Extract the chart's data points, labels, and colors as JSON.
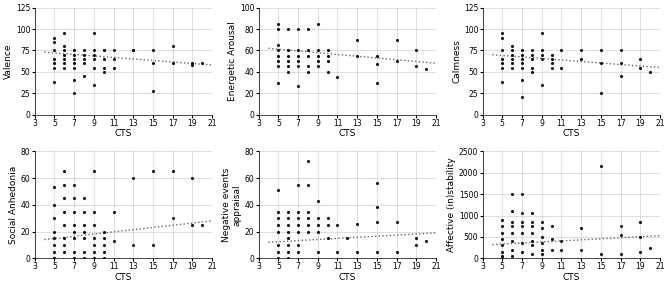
{
  "plots": [
    {
      "ylabel": "Valence",
      "ylim": [
        0,
        125
      ],
      "yticks": [
        0,
        25,
        50,
        75,
        100,
        125
      ],
      "x": [
        5,
        5,
        5,
        5,
        5,
        5,
        5,
        6,
        6,
        6,
        6,
        6,
        6,
        6,
        7,
        7,
        7,
        7,
        7,
        7,
        7,
        8,
        8,
        8,
        8,
        8,
        9,
        9,
        9,
        9,
        9,
        9,
        10,
        10,
        10,
        10,
        10,
        11,
        11,
        11,
        13,
        13,
        15,
        15,
        15,
        17,
        17,
        19,
        19,
        20
      ],
      "y": [
        75,
        65,
        60,
        55,
        85,
        90,
        38,
        70,
        75,
        95,
        80,
        65,
        60,
        55,
        70,
        75,
        65,
        60,
        55,
        25,
        40,
        70,
        75,
        65,
        60,
        45,
        70,
        75,
        65,
        95,
        35,
        55,
        75,
        65,
        55,
        75,
        50,
        55,
        65,
        75,
        75,
        75,
        75,
        27,
        60,
        60,
        80,
        60,
        58,
        60
      ],
      "trend_x": [
        4,
        21
      ],
      "trend_y": [
        73,
        58
      ]
    },
    {
      "ylabel": "Energetic Arousal",
      "ylim": [
        0,
        100
      ],
      "yticks": [
        0,
        20,
        40,
        60,
        80,
        100
      ],
      "x": [
        5,
        5,
        5,
        5,
        5,
        5,
        5,
        5,
        6,
        6,
        6,
        6,
        6,
        6,
        7,
        7,
        7,
        7,
        7,
        7,
        8,
        8,
        8,
        8,
        8,
        9,
        9,
        9,
        9,
        9,
        10,
        10,
        10,
        10,
        11,
        13,
        13,
        15,
        15,
        15,
        17,
        17,
        19,
        19,
        20
      ],
      "y": [
        60,
        55,
        50,
        45,
        80,
        85,
        30,
        65,
        60,
        55,
        50,
        80,
        45,
        40,
        60,
        55,
        50,
        80,
        45,
        27,
        60,
        55,
        80,
        45,
        40,
        60,
        55,
        50,
        45,
        85,
        55,
        60,
        50,
        40,
        35,
        55,
        70,
        55,
        47,
        30,
        50,
        70,
        60,
        45,
        43
      ],
      "trend_x": [
        4,
        21
      ],
      "trend_y": [
        62,
        48
      ]
    },
    {
      "ylabel": "Calmness",
      "ylim": [
        0,
        125
      ],
      "yticks": [
        0,
        25,
        50,
        75,
        100,
        125
      ],
      "x": [
        5,
        5,
        5,
        5,
        5,
        5,
        5,
        6,
        6,
        6,
        6,
        6,
        6,
        7,
        7,
        7,
        7,
        7,
        7,
        7,
        8,
        8,
        8,
        8,
        8,
        9,
        9,
        9,
        9,
        9,
        10,
        10,
        10,
        10,
        11,
        11,
        13,
        13,
        15,
        15,
        15,
        17,
        17,
        17,
        19,
        19,
        20
      ],
      "y": [
        75,
        65,
        60,
        55,
        90,
        95,
        38,
        70,
        75,
        65,
        60,
        80,
        55,
        70,
        75,
        65,
        60,
        55,
        20,
        40,
        70,
        75,
        65,
        55,
        50,
        70,
        75,
        65,
        95,
        35,
        65,
        70,
        55,
        60,
        75,
        55,
        75,
        65,
        25,
        60,
        75,
        45,
        60,
        75,
        55,
        65,
        50
      ],
      "trend_x": [
        4,
        21
      ],
      "trend_y": [
        70,
        55
      ]
    },
    {
      "ylabel": "Social Anhedonia",
      "ylim": [
        0,
        80
      ],
      "yticks": [
        0,
        20,
        40,
        60,
        80
      ],
      "x": [
        5,
        5,
        5,
        5,
        5,
        5,
        5,
        5,
        5,
        6,
        6,
        6,
        6,
        6,
        6,
        6,
        6,
        7,
        7,
        7,
        7,
        7,
        7,
        7,
        7,
        8,
        8,
        8,
        8,
        8,
        8,
        8,
        9,
        9,
        9,
        9,
        9,
        9,
        9,
        10,
        10,
        10,
        10,
        10,
        11,
        11,
        13,
        13,
        15,
        15,
        17,
        17,
        19,
        19,
        20
      ],
      "y": [
        53,
        40,
        30,
        20,
        15,
        10,
        5,
        0,
        0,
        65,
        55,
        45,
        35,
        25,
        15,
        10,
        5,
        55,
        45,
        35,
        25,
        20,
        15,
        5,
        0,
        45,
        35,
        25,
        20,
        15,
        5,
        0,
        35,
        25,
        15,
        10,
        5,
        0,
        65,
        20,
        15,
        10,
        5,
        0,
        35,
        13,
        60,
        10,
        65,
        10,
        65,
        30,
        60,
        25,
        25
      ],
      "trend_x": [
        4,
        21
      ],
      "trend_y": [
        14,
        28
      ]
    },
    {
      "ylabel": "Negative events\nappraisal",
      "ylim": [
        0,
        80
      ],
      "yticks": [
        0,
        20,
        40,
        60,
        80
      ],
      "x": [
        5,
        5,
        5,
        5,
        5,
        5,
        5,
        5,
        6,
        6,
        6,
        6,
        6,
        6,
        6,
        6,
        7,
        7,
        7,
        7,
        7,
        7,
        7,
        8,
        8,
        8,
        8,
        8,
        8,
        9,
        9,
        9,
        9,
        9,
        10,
        10,
        10,
        11,
        11,
        12,
        13,
        13,
        15,
        15,
        15,
        15,
        17,
        17,
        19,
        19,
        20
      ],
      "y": [
        51,
        35,
        30,
        25,
        20,
        10,
        5,
        0,
        35,
        30,
        25,
        20,
        15,
        10,
        5,
        0,
        55,
        35,
        30,
        25,
        20,
        10,
        5,
        73,
        55,
        35,
        30,
        25,
        20,
        43,
        30,
        25,
        20,
        5,
        30,
        25,
        15,
        25,
        5,
        15,
        26,
        5,
        56,
        38,
        27,
        5,
        27,
        5,
        15,
        10,
        13
      ],
      "trend_x": [
        4,
        21
      ],
      "trend_y": [
        12,
        19
      ]
    },
    {
      "ylabel": "Affective (in)stability",
      "ylim": [
        0,
        2500
      ],
      "yticks": [
        0,
        500,
        1000,
        1500,
        2000,
        2500
      ],
      "x": [
        5,
        5,
        5,
        5,
        5,
        5,
        5,
        5,
        6,
        6,
        6,
        6,
        6,
        6,
        6,
        6,
        7,
        7,
        7,
        7,
        7,
        7,
        7,
        8,
        8,
        8,
        8,
        8,
        8,
        8,
        9,
        9,
        9,
        9,
        9,
        9,
        10,
        10,
        10,
        11,
        11,
        13,
        13,
        15,
        15,
        17,
        17,
        17,
        19,
        19,
        19,
        20
      ],
      "y": [
        900,
        750,
        600,
        450,
        300,
        150,
        50,
        0,
        1500,
        1100,
        850,
        750,
        600,
        400,
        200,
        50,
        1500,
        1050,
        850,
        750,
        600,
        350,
        150,
        1050,
        850,
        750,
        600,
        400,
        300,
        100,
        850,
        700,
        500,
        350,
        200,
        100,
        750,
        450,
        200,
        400,
        200,
        700,
        200,
        2150,
        100,
        750,
        550,
        100,
        850,
        500,
        150,
        250
      ],
      "trend_x": [
        4,
        21
      ],
      "trend_y": [
        320,
        530
      ]
    }
  ],
  "xlabel": "CTS",
  "xticks": [
    3,
    5,
    7,
    9,
    11,
    13,
    15,
    17,
    19,
    21
  ],
  "xlim": [
    3,
    21
  ],
  "dot_color": "#111111",
  "dot_size": 5,
  "trend_color": "#666666",
  "grid_color": "#d0d0d0",
  "bg_color": "#ffffff"
}
